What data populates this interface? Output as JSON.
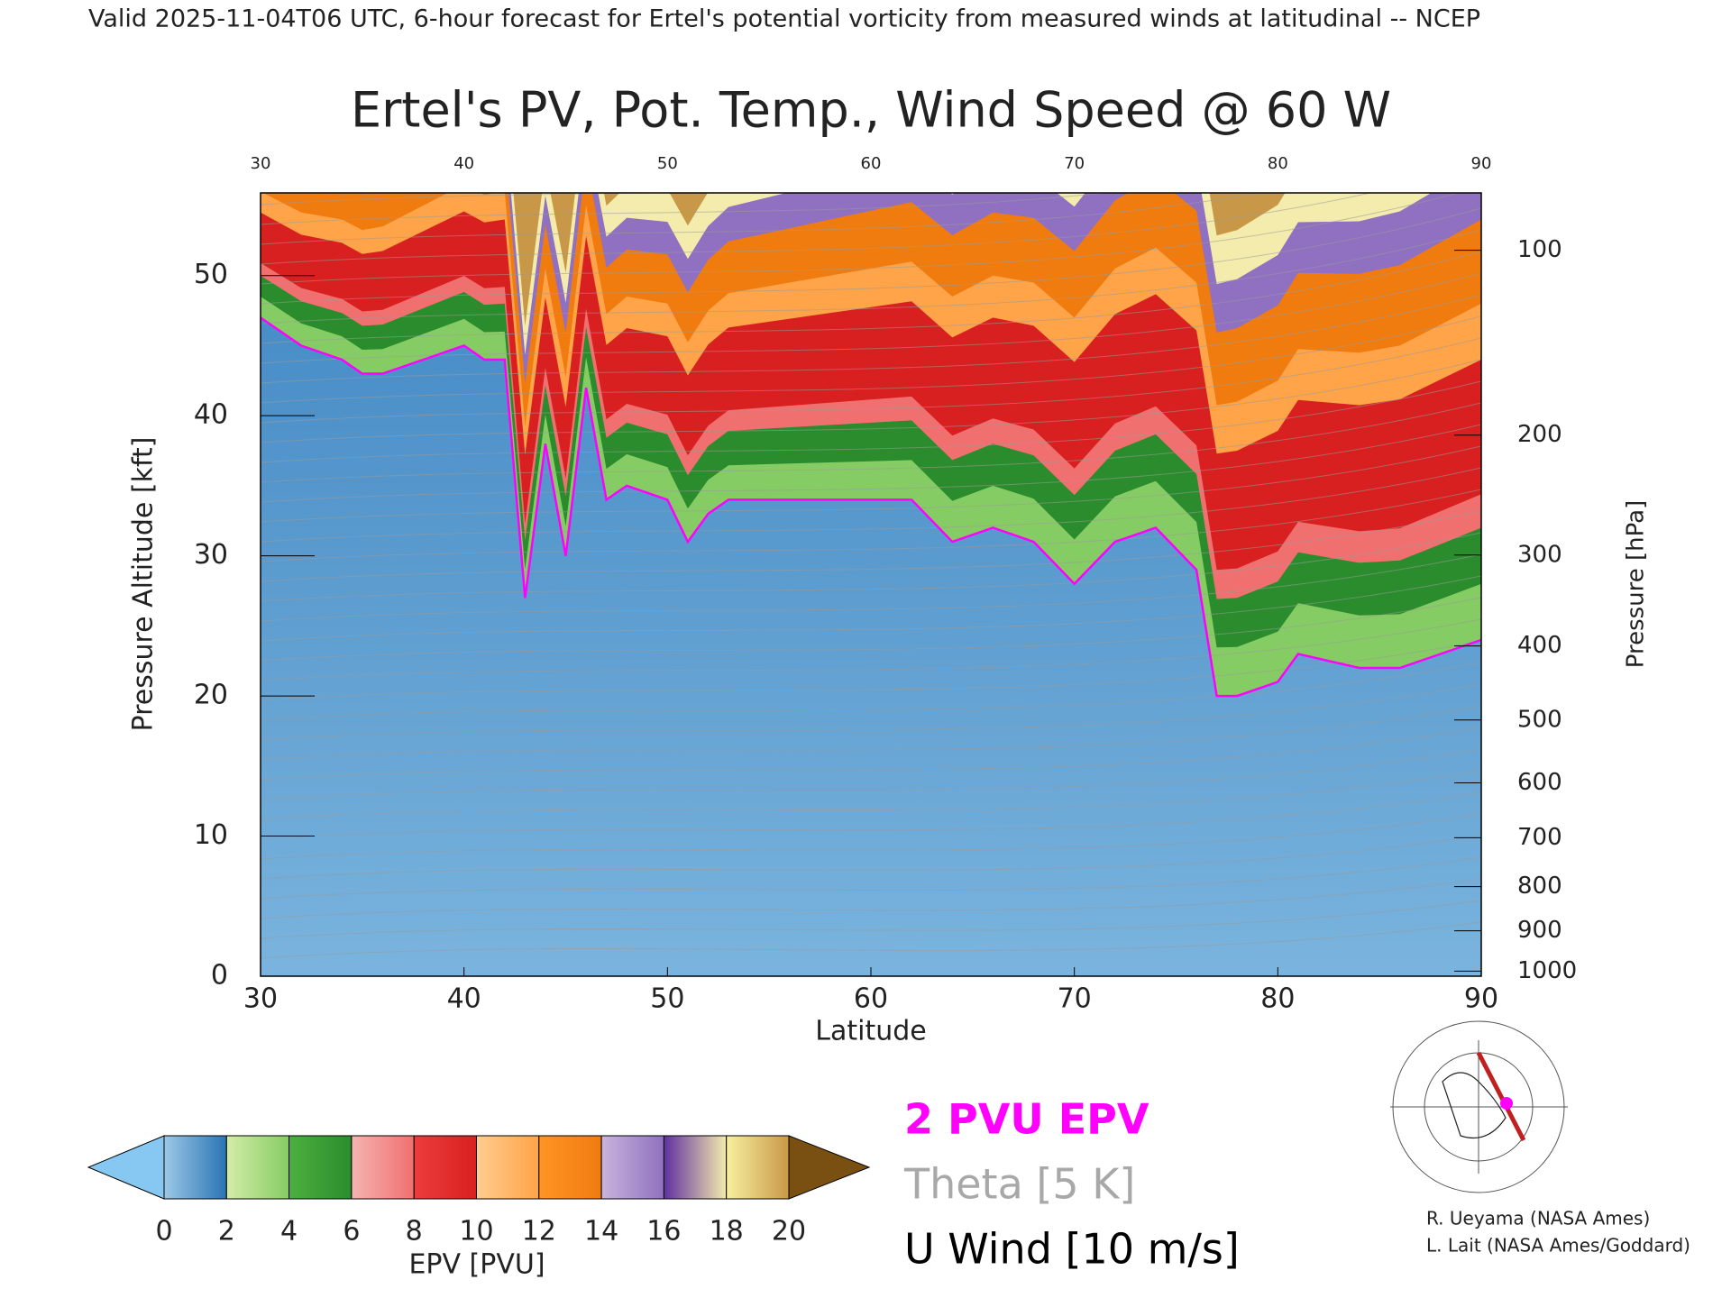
{
  "header": "Valid 2025-11-04T06 UTC, 6-hour forecast for Ertel's potential vorticity from measured winds at latitudinal -- NCEP",
  "chart_data": {
    "type": "cross-section",
    "title": "Ertel's PV, Pot. Temp., Wind Speed @ 60 W",
    "x_label": "Latitude",
    "y_label": "Pressure Altitude [kft]",
    "y2_label": "Pressure [hPa]",
    "xlim": [
      30,
      90
    ],
    "xticks": [
      30,
      40,
      50,
      60,
      70,
      80,
      90
    ],
    "ylim": [
      0,
      55.9
    ],
    "yticks": [
      0,
      10,
      20,
      30,
      40,
      50
    ],
    "y2scale": "pressure-altitude",
    "y2ticks": [
      100,
      200,
      300,
      400,
      500,
      600,
      700,
      800,
      900,
      1000
    ],
    "series": [
      {
        "name": "2 PVU EPV",
        "color": "#ff00ff",
        "x": [
          30,
          32,
          34,
          35,
          36,
          38,
          40,
          41,
          42,
          43,
          44,
          45,
          46,
          47,
          48,
          50,
          51,
          52,
          53,
          55,
          57,
          60,
          62,
          64,
          66,
          68,
          70,
          72,
          74,
          76,
          77,
          78,
          80,
          81,
          84,
          86,
          88,
          90
        ],
        "values": [
          47,
          45,
          44,
          43,
          43,
          44,
          45,
          44,
          44,
          27,
          38,
          30,
          42,
          34,
          35,
          34,
          31,
          33,
          34,
          34,
          34,
          34,
          34,
          31,
          32,
          31,
          28,
          31,
          32,
          29,
          20,
          20,
          21,
          23,
          22,
          22,
          23,
          24
        ]
      }
    ],
    "legend": [
      "2 PVU EPV",
      "Theta [5 K]",
      "U Wind [10 m/s]"
    ],
    "legend_colors": [
      "#ff00ff",
      "#a8a8a8",
      "#000000"
    ],
    "colorbar": {
      "label": "EPV [PVU]",
      "ticks": [
        0,
        2,
        4,
        6,
        8,
        10,
        12,
        14,
        16,
        18,
        20
      ],
      "under": "#86c8f2",
      "over": "#7a5012",
      "colors": [
        [
          "#9cc8e6",
          "#2a74b4"
        ],
        [
          "#d4eca8",
          "#86cc64"
        ],
        [
          "#4cb040",
          "#2a8c2c"
        ],
        [
          "#f4b4b0",
          "#f07070"
        ],
        [
          "#ec3c3c",
          "#d82020"
        ],
        [
          "#ffcc90",
          "#ffa448"
        ],
        [
          "#ff9424",
          "#f07c10"
        ],
        [
          "#c8b4dc",
          "#9070c0"
        ],
        [
          "#6030a0",
          "#f4ecac"
        ],
        [
          "#f8f0a0",
          "#c89848"
        ]
      ]
    },
    "credits": [
      "R. Ueyama (NASA Ames)",
      "L. Lait (NASA Ames/Goddard)"
    ]
  }
}
